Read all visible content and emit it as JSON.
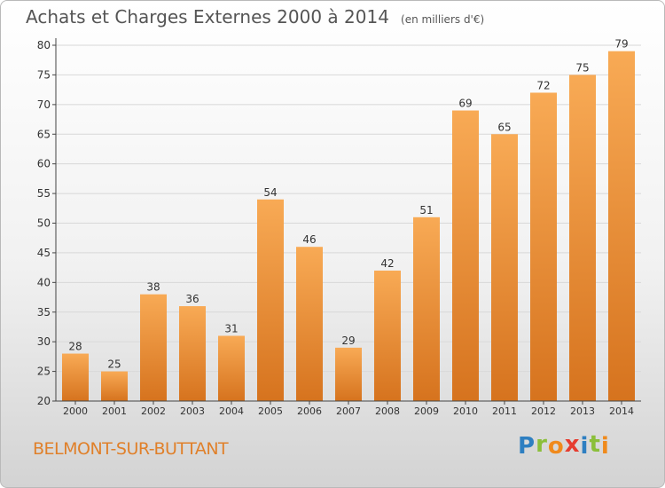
{
  "title": {
    "main": "Achats et Charges Externes 2000 à 2014",
    "unit": "(en milliers d'€)"
  },
  "place": "BELMONT-SUR-BUTTANT",
  "logo": {
    "text": "Proxiti",
    "letters": [
      {
        "ch": "P",
        "color": "#2e7fc1"
      },
      {
        "ch": "r",
        "color": "#8bbf3a"
      },
      {
        "ch": "o",
        "color": "#f08a1c"
      },
      {
        "ch": "x",
        "color": "#e63c2f"
      },
      {
        "ch": "i",
        "color": "#2e7fc1"
      },
      {
        "ch": "t",
        "color": "#8bbf3a"
      },
      {
        "ch": "i",
        "color": "#f08a1c"
      }
    ]
  },
  "colors": {
    "bar_light": "#f8aa55",
    "bar_dark": "#d6731e",
    "grid": "#d8d8d8",
    "axis": "#444444"
  },
  "chart_data": {
    "type": "bar",
    "categories": [
      "2000",
      "2001",
      "2002",
      "2003",
      "2004",
      "2005",
      "2006",
      "2007",
      "2008",
      "2009",
      "2010",
      "2011",
      "2012",
      "2013",
      "2014"
    ],
    "values": [
      28,
      25,
      38,
      36,
      31,
      54,
      46,
      29,
      42,
      51,
      69,
      65,
      72,
      75,
      79
    ],
    "data_labels": [
      "28",
      "25",
      "38",
      "36",
      "31",
      "54",
      "46",
      "29",
      "42",
      "51",
      "69",
      "65",
      "72",
      "75",
      "79"
    ],
    "yticks": [
      20,
      25,
      30,
      35,
      40,
      45,
      50,
      55,
      60,
      65,
      70,
      75,
      80
    ],
    "ylim": [
      20,
      80
    ],
    "grid": true,
    "legend": "none"
  }
}
